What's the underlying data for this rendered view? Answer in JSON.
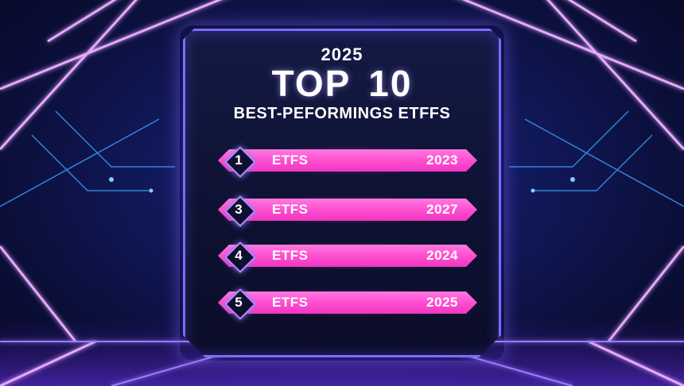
{
  "header": {
    "year": "2025",
    "title": "TOP  10",
    "subtitle": "BEST-PEFORMINGS ETFFS"
  },
  "rows": [
    {
      "rank": "1",
      "label": "ETFS",
      "year": "2023"
    },
    {
      "rank": "3",
      "label": "ETFS",
      "year": "2027"
    },
    {
      "rank": "4",
      "label": "ETFS",
      "year": "2024"
    },
    {
      "rank": "5",
      "label": "ETFS",
      "year": "2025"
    }
  ],
  "colors": {
    "background": "#0b0f3a",
    "panel_border": "#7b6cff",
    "row_bar": "#ff4fd0",
    "badge_border": "#b98cff",
    "neon_line": "#d28cff"
  }
}
